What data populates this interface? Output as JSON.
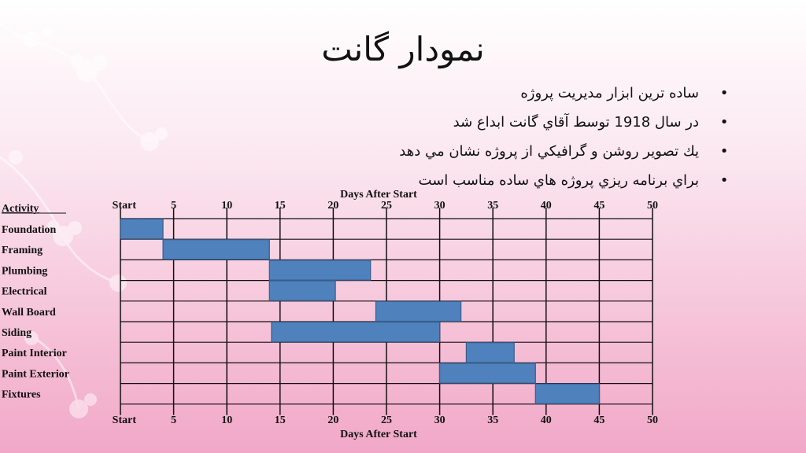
{
  "slide": {
    "title": "نمودار گانت",
    "bullets": [
      "ساده ترين ابزار مديريت پروژه",
      "در سال 1918 توسط آقاي گانت ابداع شد",
      "يك تصوير روشن و گرافيكي از پروژه نشان مي دهد",
      "براي برنامه ريزي  پروژه هاي ساده مناسب است"
    ],
    "bullet_glyph": "•"
  },
  "chart_data": {
    "type": "gantt",
    "title": "",
    "xlabel": "Days After Start",
    "ylabel": "Activity",
    "xlim": [
      0,
      50
    ],
    "x_ticks": [
      {
        "value": 0,
        "label": "Start"
      },
      {
        "value": 5,
        "label": "5"
      },
      {
        "value": 10,
        "label": "10"
      },
      {
        "value": 15,
        "label": "15"
      },
      {
        "value": 20,
        "label": "20"
      },
      {
        "value": 25,
        "label": "25"
      },
      {
        "value": 30,
        "label": "30"
      },
      {
        "value": 35,
        "label": "35"
      },
      {
        "value": 40,
        "label": "40"
      },
      {
        "value": 45,
        "label": "45"
      },
      {
        "value": 50,
        "label": "50"
      }
    ],
    "tasks": [
      {
        "name": "Foundation",
        "start": 0,
        "end": 4
      },
      {
        "name": "Framing",
        "start": 4,
        "end": 14
      },
      {
        "name": "Plumbing",
        "start": 14,
        "end": 23.5
      },
      {
        "name": "Electrical",
        "start": 14,
        "end": 20.2
      },
      {
        "name": "Wall Board",
        "start": 24,
        "end": 32
      },
      {
        "name": "Siding",
        "start": 14.2,
        "end": 30
      },
      {
        "name": "Paint Interior",
        "start": 32.5,
        "end": 37
      },
      {
        "name": "Paint Exterior",
        "start": 30,
        "end": 39
      },
      {
        "name": "Fixtures",
        "start": 39,
        "end": 45
      }
    ],
    "grid": true,
    "colors": {
      "bar_fill": "#4f81bd",
      "bar_stroke": "#385d8a",
      "grid": "#111111"
    }
  }
}
